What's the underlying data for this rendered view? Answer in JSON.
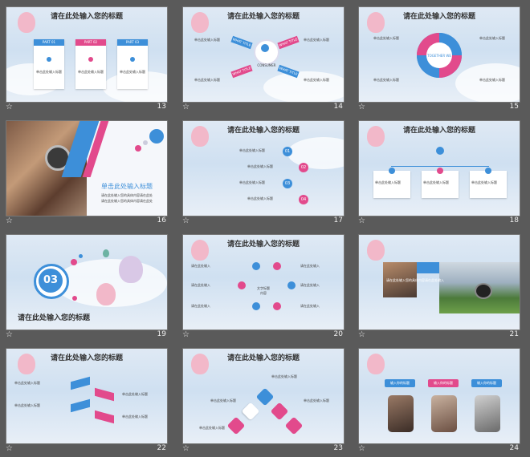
{
  "slide_title": "请在此处输入您的标题",
  "placeholder_small": "单击此处输入标题",
  "placeholder_line": "请在此处输入您的具体内容请在此处输入",
  "colors": {
    "blue": "#3d8fd9",
    "pink": "#e24a8c",
    "bg": "#5a5a5a"
  },
  "slides": [
    {
      "num": "13"
    },
    {
      "num": "14"
    },
    {
      "num": "15"
    },
    {
      "num": "16"
    },
    {
      "num": "17"
    },
    {
      "num": "18"
    },
    {
      "num": "19"
    },
    {
      "num": "20"
    },
    {
      "num": "21"
    },
    {
      "num": "22"
    },
    {
      "num": "23"
    },
    {
      "num": "24"
    }
  ],
  "s13": {
    "parts": [
      "PART 01",
      "PART 02",
      "PART 03"
    ]
  },
  "s14": {
    "center": "CONSUMER",
    "arrows": [
      "WHAT TITLE",
      "WHAT TITLE",
      "WHAT TITLE",
      "WHAT TITLE"
    ]
  },
  "s15": {
    "center": "TOGETHER WE"
  },
  "s16": {
    "heading": "单击此处输入标题",
    "lines": [
      "请在此处输入您的具体内容请在此处",
      "请在此处输入您的具体内容请在此处"
    ]
  },
  "s17": {
    "steps": [
      "01",
      "02",
      "03",
      "04"
    ]
  },
  "s19": {
    "num": "03",
    "heading": "请在此处输入您的标题"
  },
  "s20": {
    "center_lines": [
      "文字标题",
      "内容"
    ],
    "labels": [
      "请在此处输入",
      "请在此处输入",
      "请在此处输入",
      "请在此处输入",
      "请在此处输入",
      "请在此处输入"
    ]
  },
  "s21": {
    "bar_text": "点击此处输入标题"
  },
  "s24": {
    "buttons": [
      "输入你的标题",
      "输入你的标题",
      "输入你的标题"
    ]
  }
}
